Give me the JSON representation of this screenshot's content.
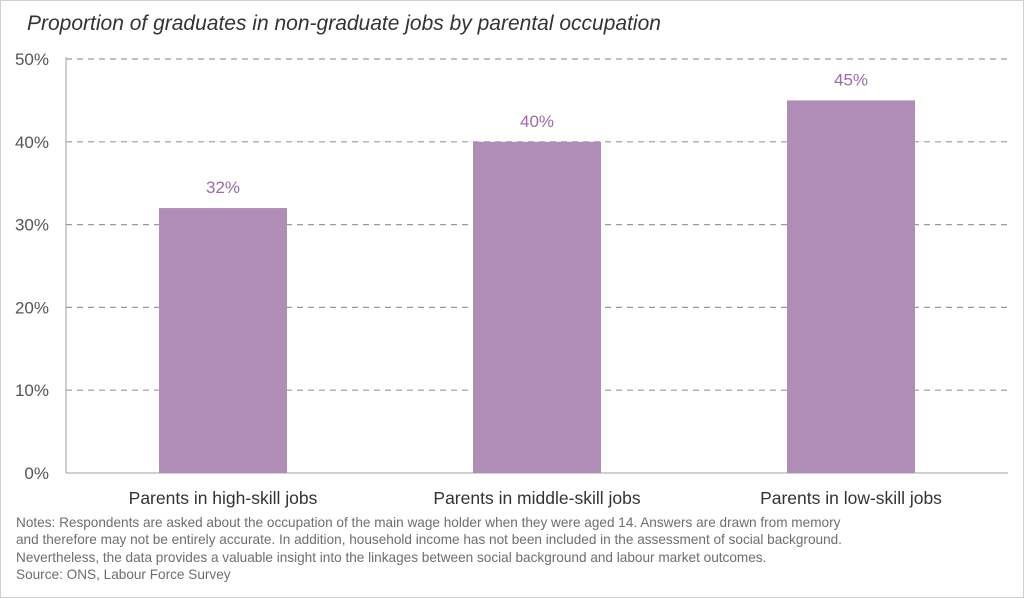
{
  "chart_data": {
    "type": "bar",
    "title": "Proportion of graduates in non-graduate jobs by parental occupation",
    "categories": [
      "Parents in high-skill jobs",
      "Parents in middle-skill jobs",
      "Parents in low-skill jobs"
    ],
    "values": [
      32,
      40,
      45
    ],
    "value_labels": [
      "32%",
      "40%",
      "45%"
    ],
    "ylim": [
      0,
      50
    ],
    "yticks": [
      0,
      10,
      20,
      30,
      40,
      50
    ],
    "ytick_labels": [
      "0%",
      "10%",
      "20%",
      "30%",
      "40%",
      "50%"
    ],
    "grid": true,
    "bar_color": "#b08db7",
    "label_color": "#9c6aa8"
  },
  "notes": {
    "lines": [
      "Notes: Respondents are asked about the occupation of the main wage holder when they were aged 14. Answers are drawn from memory",
      "and therefore may not be entirely accurate. In addition, household income has not been included in the assessment of social background.",
      "Nevertheless, the data provides a valuable insight into the linkages between social background and labour market outcomes."
    ],
    "source": "Source: ONS, Labour Force Survey"
  }
}
